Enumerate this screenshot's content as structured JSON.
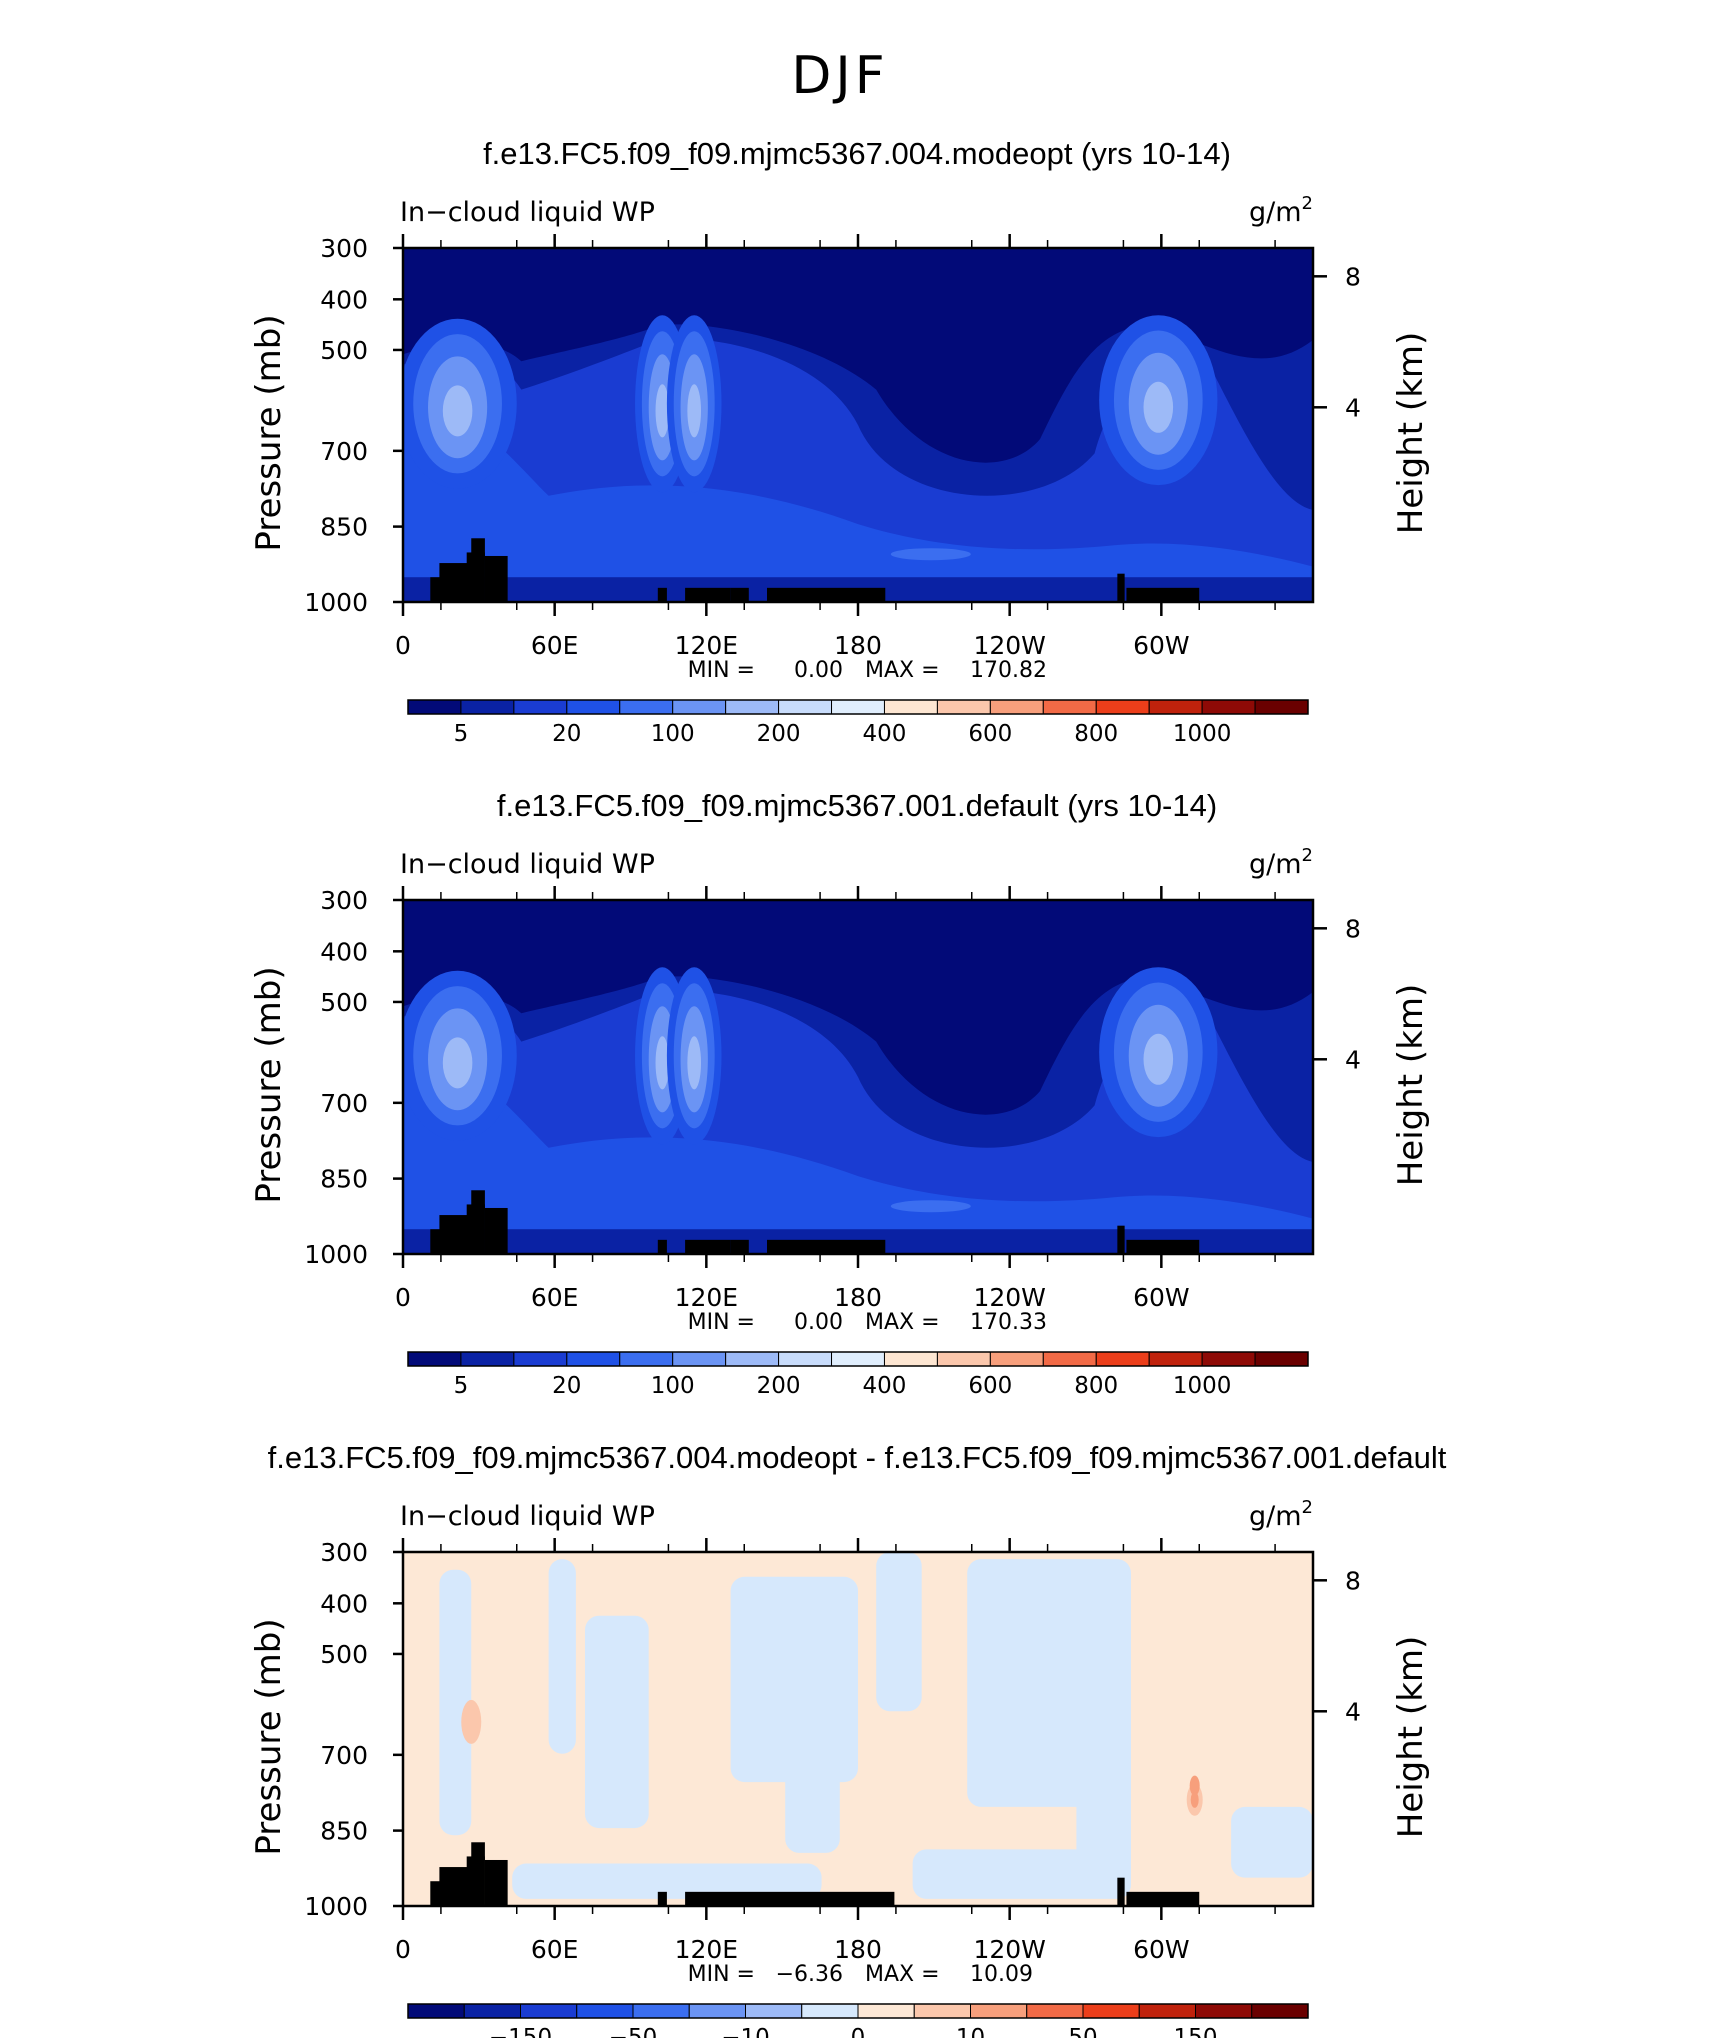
{
  "figure_title": "DJF",
  "chart_data": [
    {
      "type": "heatmap",
      "title": "f.e13.FC5.f09_f09.mjmc5367.004.modeopt (yrs 10-14)",
      "variable": "In−cloud liquid WP",
      "units_base": "g/m",
      "units_exp": "2",
      "ylabel": "Pressure (mb)",
      "y2label": "Height (km)",
      "x_ticks": [
        "0",
        "60E",
        "120E",
        "180",
        "120W",
        "60W"
      ],
      "y_ticks": [
        "300",
        "400",
        "500",
        "700",
        "850",
        "1000"
      ],
      "y2_ticks": [
        "8",
        "4"
      ],
      "stats": {
        "min_label": "MIN =",
        "min": "0.00",
        "max_label": "MAX =",
        "max": "170.82"
      },
      "colorbar_labels": [
        "5",
        "20",
        "100",
        "200",
        "400",
        "600",
        "800",
        "1000"
      ]
    },
    {
      "type": "heatmap",
      "title": "f.e13.FC5.f09_f09.mjmc5367.001.default (yrs 10-14)",
      "variable": "In−cloud liquid WP",
      "units_base": "g/m",
      "units_exp": "2",
      "ylabel": "Pressure (mb)",
      "y2label": "Height (km)",
      "x_ticks": [
        "0",
        "60E",
        "120E",
        "180",
        "120W",
        "60W"
      ],
      "y_ticks": [
        "300",
        "400",
        "500",
        "700",
        "850",
        "1000"
      ],
      "y2_ticks": [
        "8",
        "4"
      ],
      "stats": {
        "min_label": "MIN =",
        "min": "0.00",
        "max_label": "MAX =",
        "max": "170.33"
      },
      "colorbar_labels": [
        "5",
        "20",
        "100",
        "200",
        "400",
        "600",
        "800",
        "1000"
      ]
    },
    {
      "type": "heatmap",
      "title": "f.e13.FC5.f09_f09.mjmc5367.004.modeopt - f.e13.FC5.f09_f09.mjmc5367.001.default",
      "variable": "In−cloud liquid WP",
      "units_base": "g/m",
      "units_exp": "2",
      "ylabel": "Pressure (mb)",
      "y2label": "Height (km)",
      "x_ticks": [
        "0",
        "60E",
        "120E",
        "180",
        "120W",
        "60W"
      ],
      "y_ticks": [
        "300",
        "400",
        "500",
        "700",
        "850",
        "1000"
      ],
      "y2_ticks": [
        "8",
        "4"
      ],
      "stats": {
        "min_label": "MIN =",
        "min": "−6.36",
        "max_label": "MAX =",
        "max": "10.09"
      },
      "colorbar_labels": [
        "−150",
        "−50",
        "−10",
        "0",
        "10",
        "50",
        "150"
      ]
    }
  ],
  "colors": {
    "abs_scale": [
      "#020a78",
      "#0a22a4",
      "#1a3cd2",
      "#1f51e6",
      "#3b6ef0",
      "#6b94f4",
      "#9dbaf7",
      "#c8dcfb",
      "#e0eefd",
      "#fde6d2",
      "#fbc7ac",
      "#f79f7c",
      "#f26a46",
      "#ec3e1a",
      "#c0220c",
      "#8e0a06",
      "#6a0000"
    ],
    "diff_scale": [
      "#020a78",
      "#0a22a4",
      "#1a3cd2",
      "#1f51e6",
      "#3b6ef0",
      "#6b94f4",
      "#9dbaf7",
      "#d6e8fc",
      "#fde8d6",
      "#fbc7ac",
      "#f79f7c",
      "#f26a46",
      "#ec3e1a",
      "#c0220c",
      "#8e0a06",
      "#6a0000"
    ],
    "land": "#000000"
  }
}
